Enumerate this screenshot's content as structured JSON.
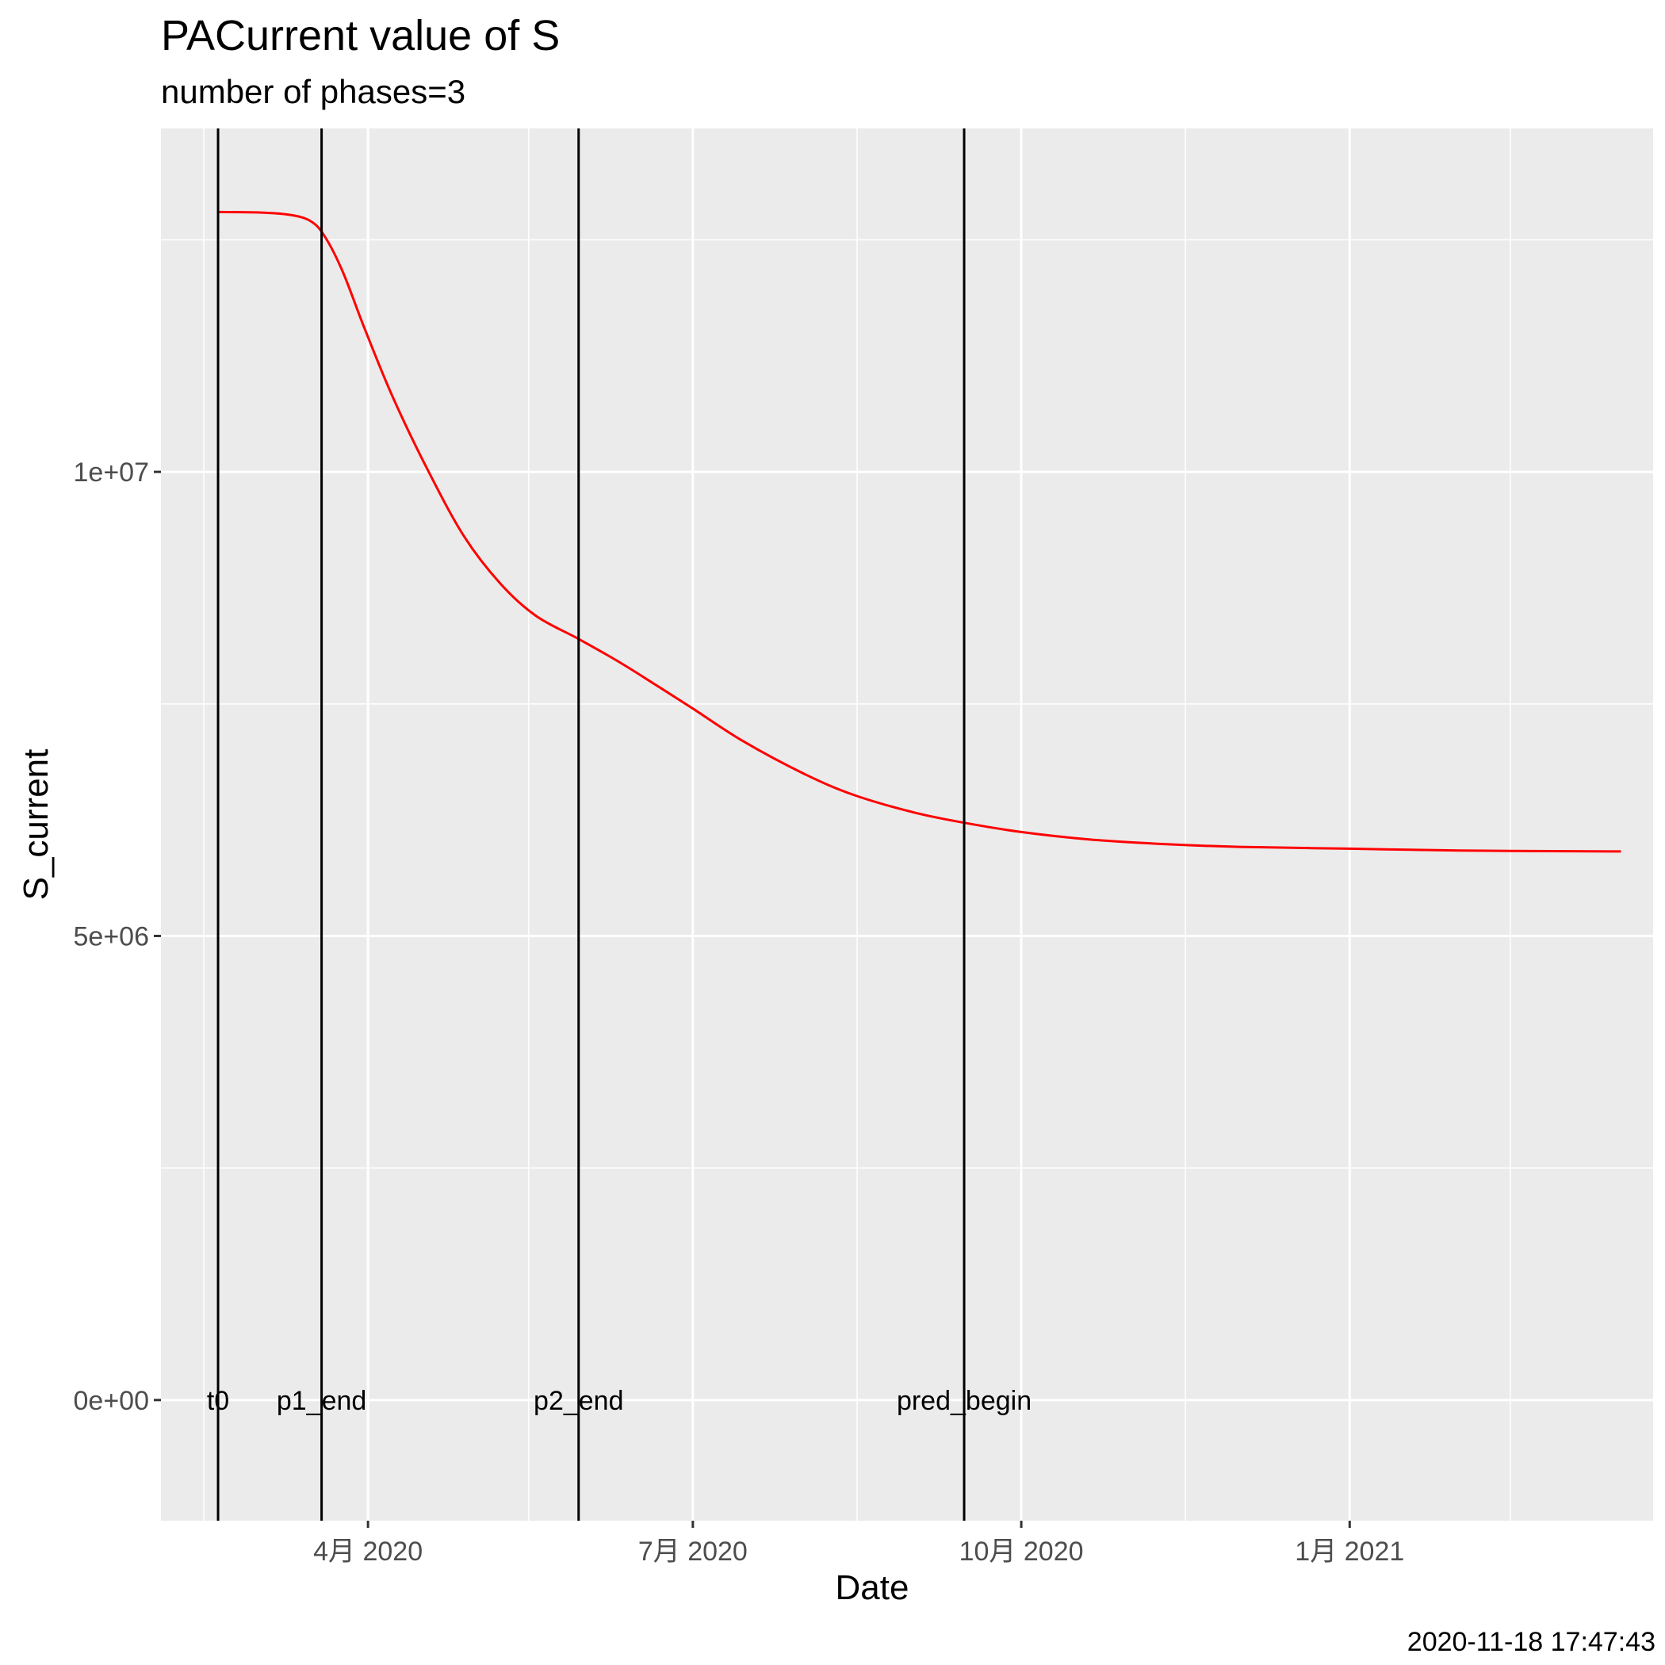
{
  "chart_data": {
    "type": "line",
    "title": "PACurrent value of S",
    "subtitle": "number of phases=3",
    "xlabel": "Date",
    "ylabel": "S_current",
    "caption": "2020-11-18 17:47:43",
    "grid": true,
    "legend": "none",
    "xlim": [
      "2020-02-03",
      "2021-03-27"
    ],
    "ylim": [
      -1300000,
      13700000
    ],
    "x_ticks": [
      {
        "date": "2020-04-01",
        "label": "4月 2020"
      },
      {
        "date": "2020-07-01",
        "label": "7月 2020"
      },
      {
        "date": "2020-10-01",
        "label": "10月 2020"
      },
      {
        "date": "2021-01-01",
        "label": "1月 2021"
      }
    ],
    "x_minor_ticks": [
      "2020-02-15",
      "2020-05-16",
      "2020-08-16",
      "2020-11-16",
      "2021-02-15"
    ],
    "y_ticks": [
      {
        "value": 0,
        "label": "0e+00"
      },
      {
        "value": 5000000,
        "label": "5e+06"
      },
      {
        "value": 10000000,
        "label": "1e+07"
      }
    ],
    "y_minor_ticks": [
      2500000,
      7500000,
      12500000
    ],
    "series": [
      {
        "color": "#ff0000",
        "points": [
          {
            "x": "2020-02-19",
            "y": 12800000
          },
          {
            "x": "2020-03-01",
            "y": 12795000
          },
          {
            "x": "2020-03-10",
            "y": 12770000
          },
          {
            "x": "2020-03-16",
            "y": 12700000
          },
          {
            "x": "2020-03-20",
            "y": 12530000
          },
          {
            "x": "2020-03-25",
            "y": 12150000
          },
          {
            "x": "2020-03-31",
            "y": 11550000
          },
          {
            "x": "2020-04-08",
            "y": 10800000
          },
          {
            "x": "2020-04-18",
            "y": 10000000
          },
          {
            "x": "2020-04-28",
            "y": 9300000
          },
          {
            "x": "2020-05-08",
            "y": 8800000
          },
          {
            "x": "2020-05-18",
            "y": 8450000
          },
          {
            "x": "2020-05-30",
            "y": 8200000
          },
          {
            "x": "2020-06-10",
            "y": 7960000
          },
          {
            "x": "2020-06-20",
            "y": 7720000
          },
          {
            "x": "2020-07-01",
            "y": 7450000
          },
          {
            "x": "2020-07-15",
            "y": 7100000
          },
          {
            "x": "2020-08-01",
            "y": 6750000
          },
          {
            "x": "2020-08-15",
            "y": 6520000
          },
          {
            "x": "2020-09-01",
            "y": 6330000
          },
          {
            "x": "2020-09-15",
            "y": 6220000
          },
          {
            "x": "2020-10-01",
            "y": 6120000
          },
          {
            "x": "2020-10-20",
            "y": 6040000
          },
          {
            "x": "2020-11-10",
            "y": 5990000
          },
          {
            "x": "2020-12-01",
            "y": 5960000
          },
          {
            "x": "2021-01-01",
            "y": 5940000
          },
          {
            "x": "2021-02-01",
            "y": 5920000
          },
          {
            "x": "2021-03-18",
            "y": 5910000
          }
        ]
      }
    ],
    "vlines": [
      {
        "x": "2020-02-19",
        "label": "t0"
      },
      {
        "x": "2020-03-19",
        "label": "p1_end"
      },
      {
        "x": "2020-05-30",
        "label": "p2_end"
      },
      {
        "x": "2020-09-15",
        "label": "pred_begin"
      }
    ]
  }
}
